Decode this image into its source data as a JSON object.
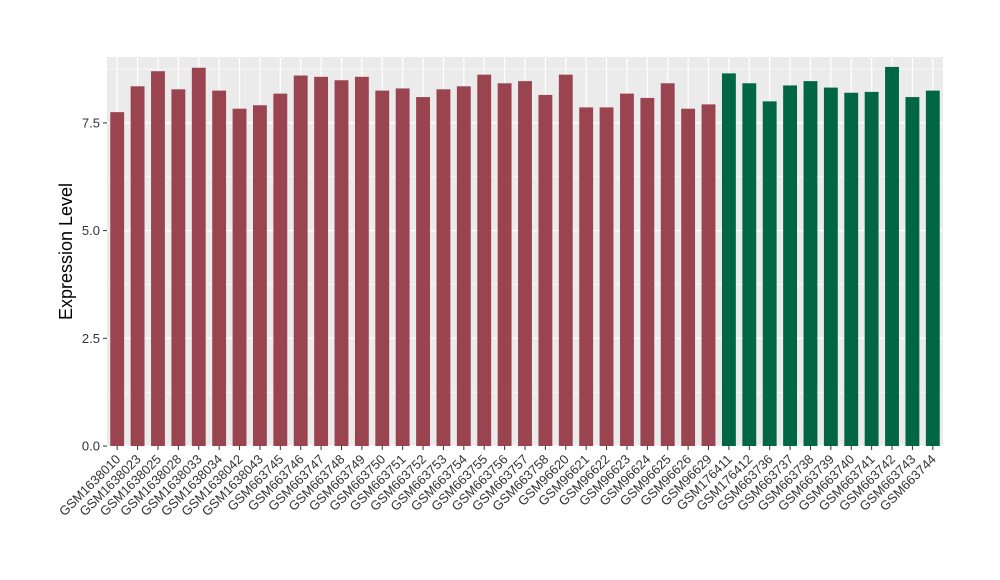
{
  "chart_data": {
    "type": "bar",
    "title": "",
    "xlabel": "",
    "ylabel": "Expression Level",
    "ylim": [
      0,
      9.03
    ],
    "yticks": [
      0.0,
      2.5,
      5.0,
      7.5
    ],
    "ytick_labels": [
      "0.0",
      "2.5",
      "5.0",
      "7.5"
    ],
    "grid": true,
    "legend": "none",
    "colors": {
      "group1": "#9a4450",
      "group2": "#006644",
      "panel": "#ebebeb",
      "grid": "#ffffff"
    },
    "categories": [
      "GSM1638010",
      "GSM1638023",
      "GSM1638025",
      "GSM1638028",
      "GSM1638033",
      "GSM1638034",
      "GSM1638042",
      "GSM1638043",
      "GSM663745",
      "GSM663746",
      "GSM663747",
      "GSM663748",
      "GSM663749",
      "GSM663750",
      "GSM663751",
      "GSM663752",
      "GSM663753",
      "GSM663754",
      "GSM663755",
      "GSM663756",
      "GSM663757",
      "GSM663758",
      "GSM96620",
      "GSM96621",
      "GSM96622",
      "GSM96623",
      "GSM96624",
      "GSM96625",
      "GSM96626",
      "GSM96629",
      "GSM176411",
      "GSM176412",
      "GSM663736",
      "GSM663737",
      "GSM663738",
      "GSM663739",
      "GSM663740",
      "GSM663741",
      "GSM663742",
      "GSM663743",
      "GSM663744"
    ],
    "values": [
      7.75,
      8.35,
      8.7,
      8.28,
      8.78,
      8.25,
      7.83,
      7.91,
      8.18,
      8.6,
      8.57,
      8.49,
      8.57,
      8.25,
      8.3,
      8.1,
      8.28,
      8.35,
      8.62,
      8.42,
      8.47,
      8.15,
      8.62,
      7.86,
      7.86,
      8.18,
      8.08,
      8.42,
      7.83,
      7.93,
      8.65,
      8.42,
      8.0,
      8.37,
      8.47,
      8.32,
      8.2,
      8.22,
      8.8,
      8.1,
      8.25
    ],
    "groups": [
      1,
      1,
      1,
      1,
      1,
      1,
      1,
      1,
      1,
      1,
      1,
      1,
      1,
      1,
      1,
      1,
      1,
      1,
      1,
      1,
      1,
      1,
      1,
      1,
      1,
      1,
      1,
      1,
      1,
      1,
      2,
      2,
      2,
      2,
      2,
      2,
      2,
      2,
      2,
      2,
      2
    ]
  }
}
